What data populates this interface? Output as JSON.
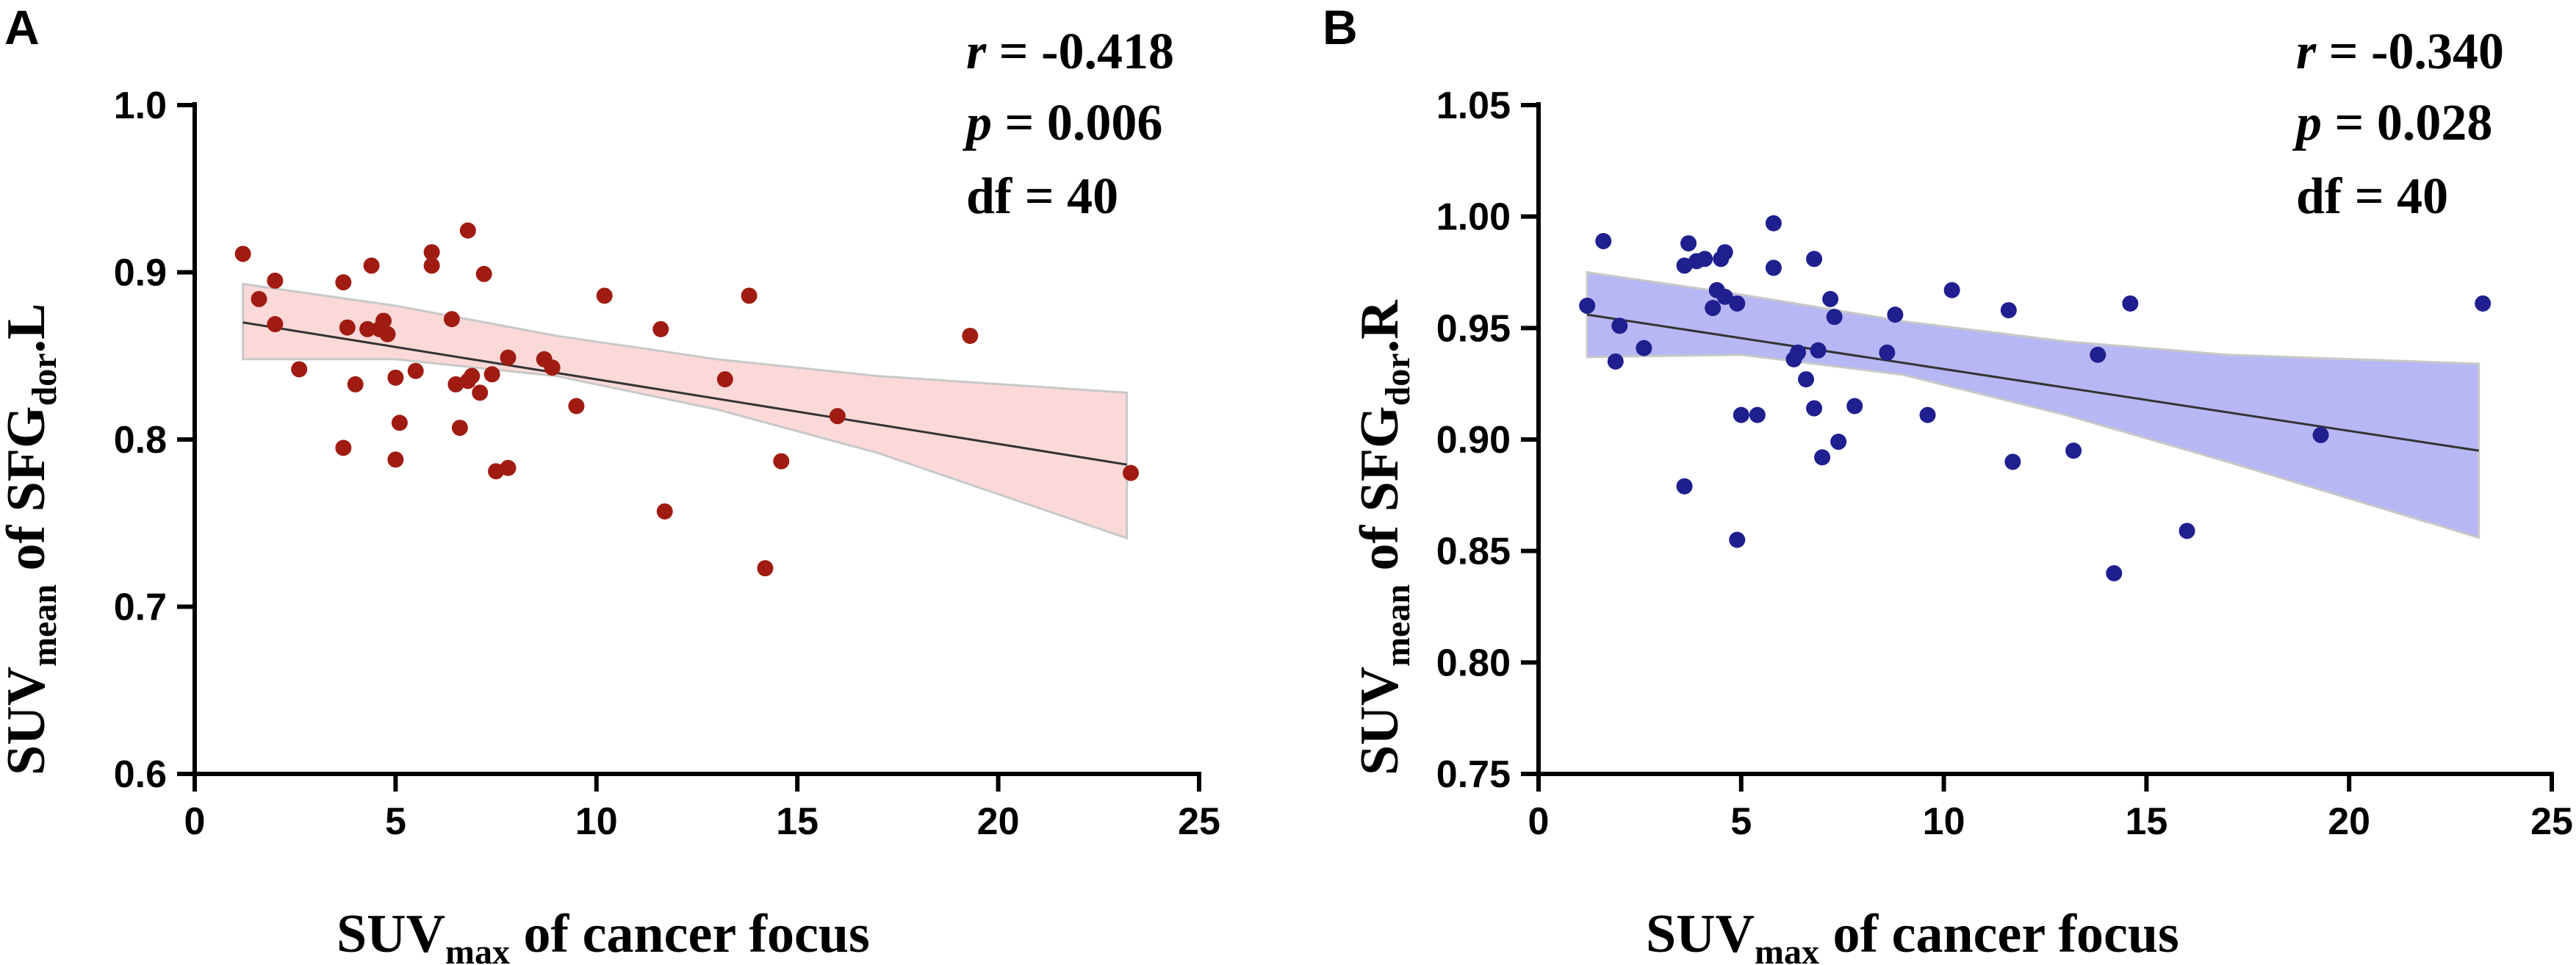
{
  "chart_data": [
    {
      "panel": "A",
      "type": "scatter",
      "color": "#a01c12",
      "band_color": "#fbd9d9",
      "line_color": "#333333",
      "xlabel_main": "SUV",
      "xlabel_sub": "max",
      "xlabel_rest": " of cancer focus",
      "ylabel_main": "SUV",
      "ylabel_sub": "mean",
      "ylabel_mid": " of SFG",
      "ylabel_sub2": "dor",
      "ylabel_end": ".L",
      "xlim": [
        0,
        25
      ],
      "ylim": [
        0.6,
        1.0
      ],
      "xticks": [
        0,
        5,
        10,
        15,
        20,
        25
      ],
      "xtick_labels": [
        "0",
        "5",
        "10",
        "15",
        "20",
        "25"
      ],
      "yticks": [
        0.6,
        0.7,
        0.8,
        0.9,
        1.0
      ],
      "ytick_labels": [
        "0.6",
        "0.7",
        "0.8",
        "0.9",
        "1.0"
      ],
      "stats": {
        "r_label": "r",
        "r_value": " = -0.418",
        "p_label": "p",
        "p_value": " = 0.006",
        "df": "df = 40"
      },
      "fit": {
        "x": [
          1.2,
          23.2
        ],
        "y": [
          0.87,
          0.785
        ]
      },
      "ci_upper": [
        [
          1.2,
          0.893
        ],
        [
          5,
          0.88
        ],
        [
          9,
          0.862
        ],
        [
          13,
          0.848
        ],
        [
          17,
          0.838
        ],
        [
          23.2,
          0.828
        ]
      ],
      "ci_lower": [
        [
          1.2,
          0.848
        ],
        [
          5,
          0.848
        ],
        [
          9,
          0.838
        ],
        [
          13,
          0.818
        ],
        [
          17,
          0.792
        ],
        [
          23.2,
          0.741
        ]
      ],
      "points": [
        [
          1.2,
          0.911
        ],
        [
          1.6,
          0.884
        ],
        [
          2.0,
          0.895
        ],
        [
          2.0,
          0.869
        ],
        [
          2.6,
          0.842
        ],
        [
          3.7,
          0.894
        ],
        [
          3.7,
          0.795
        ],
        [
          3.8,
          0.867
        ],
        [
          4.0,
          0.833
        ],
        [
          4.3,
          0.866
        ],
        [
          4.4,
          0.904
        ],
        [
          4.6,
          0.866
        ],
        [
          4.7,
          0.871
        ],
        [
          4.8,
          0.863
        ],
        [
          5.0,
          0.837
        ],
        [
          5.0,
          0.788
        ],
        [
          5.1,
          0.81
        ],
        [
          5.5,
          0.841
        ],
        [
          5.9,
          0.912
        ],
        [
          5.9,
          0.904
        ],
        [
          6.4,
          0.872
        ],
        [
          6.5,
          0.833
        ],
        [
          6.6,
          0.807
        ],
        [
          6.8,
          0.925
        ],
        [
          6.8,
          0.835
        ],
        [
          6.9,
          0.838
        ],
        [
          7.1,
          0.828
        ],
        [
          7.2,
          0.899
        ],
        [
          7.4,
          0.839
        ],
        [
          7.5,
          0.781
        ],
        [
          7.8,
          0.849
        ],
        [
          7.8,
          0.783
        ],
        [
          8.7,
          0.848
        ],
        [
          8.9,
          0.843
        ],
        [
          9.5,
          0.82
        ],
        [
          10.2,
          0.886
        ],
        [
          11.6,
          0.866
        ],
        [
          11.7,
          0.757
        ],
        [
          13.2,
          0.836
        ],
        [
          13.8,
          0.886
        ],
        [
          14.2,
          0.723
        ],
        [
          14.6,
          0.787
        ],
        [
          16.0,
          0.814
        ],
        [
          19.3,
          0.862
        ],
        [
          23.3,
          0.78
        ]
      ]
    },
    {
      "panel": "B",
      "type": "scatter",
      "color": "#1f1f8f",
      "band_color": "#b7b7f5",
      "line_color": "#333333",
      "xlabel_main": "SUV",
      "xlabel_sub": "max",
      "xlabel_rest": " of cancer focus",
      "ylabel_main": "SUV",
      "ylabel_sub": "mean",
      "ylabel_mid": " of SFG",
      "ylabel_sub2": "dor",
      "ylabel_end": ".R",
      "xlim": [
        0,
        25
      ],
      "ylim": [
        0.75,
        1.05
      ],
      "xticks": [
        0,
        5,
        10,
        15,
        20,
        25
      ],
      "xtick_labels": [
        "0",
        "5",
        "10",
        "15",
        "20",
        "25"
      ],
      "yticks": [
        0.75,
        0.8,
        0.85,
        0.9,
        0.95,
        1.0,
        1.05
      ],
      "ytick_labels": [
        "0.75",
        "0.80",
        "0.85",
        "0.90",
        "0.95",
        "1.00",
        "1.05"
      ],
      "stats": {
        "r_label": "r",
        "r_value": " = -0.340",
        "p_label": "p",
        "p_value": " = 0.028",
        "df": "df = 40"
      },
      "fit": {
        "x": [
          1.2,
          23.2
        ],
        "y": [
          0.956,
          0.895
        ]
      },
      "ci_upper": [
        [
          1.2,
          0.975
        ],
        [
          5,
          0.965
        ],
        [
          9,
          0.953
        ],
        [
          13,
          0.944
        ],
        [
          17,
          0.938
        ],
        [
          23.2,
          0.934
        ]
      ],
      "ci_lower": [
        [
          1.2,
          0.937
        ],
        [
          5,
          0.938
        ],
        [
          9,
          0.929
        ],
        [
          13,
          0.911
        ],
        [
          17,
          0.89
        ],
        [
          23.2,
          0.856
        ]
      ],
      "points": [
        [
          1.2,
          0.96
        ],
        [
          1.6,
          0.989
        ],
        [
          1.9,
          0.935
        ],
        [
          2.0,
          0.951
        ],
        [
          2.6,
          0.941
        ],
        [
          3.6,
          0.978
        ],
        [
          3.6,
          0.879
        ],
        [
          3.7,
          0.988
        ],
        [
          3.9,
          0.98
        ],
        [
          4.1,
          0.981
        ],
        [
          4.3,
          0.959
        ],
        [
          4.4,
          0.967
        ],
        [
          4.5,
          0.981
        ],
        [
          4.6,
          0.964
        ],
        [
          4.6,
          0.984
        ],
        [
          4.9,
          0.961
        ],
        [
          4.9,
          0.855
        ],
        [
          5.0,
          0.911
        ],
        [
          5.4,
          0.911
        ],
        [
          5.8,
          0.997
        ],
        [
          5.8,
          0.977
        ],
        [
          6.3,
          0.936
        ],
        [
          6.4,
          0.939
        ],
        [
          6.6,
          0.927
        ],
        [
          6.8,
          0.981
        ],
        [
          6.8,
          0.914
        ],
        [
          6.9,
          0.94
        ],
        [
          7.0,
          0.892
        ],
        [
          7.2,
          0.963
        ],
        [
          7.3,
          0.955
        ],
        [
          7.4,
          0.899
        ],
        [
          7.8,
          0.915
        ],
        [
          8.6,
          0.939
        ],
        [
          8.8,
          0.956
        ],
        [
          9.6,
          0.911
        ],
        [
          10.2,
          0.967
        ],
        [
          11.6,
          0.958
        ],
        [
          11.7,
          0.89
        ],
        [
          13.2,
          0.895
        ],
        [
          13.8,
          0.938
        ],
        [
          14.2,
          0.84
        ],
        [
          14.6,
          0.961
        ],
        [
          16.0,
          0.859
        ],
        [
          19.3,
          0.902
        ],
        [
          23.3,
          0.961
        ]
      ]
    }
  ]
}
